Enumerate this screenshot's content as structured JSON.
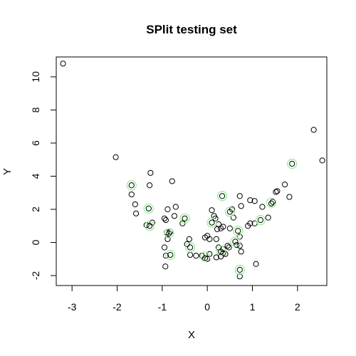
{
  "chart_data": {
    "type": "scatter",
    "title": "SPlit testing set",
    "xlabel": "X",
    "ylabel": "Y",
    "xlim": [
      -3.35,
      2.65
    ],
    "ylim": [
      -2.6,
      11.2
    ],
    "xticks": [
      -3,
      -2,
      -1,
      0,
      1,
      2
    ],
    "yticks": [
      -2,
      0,
      2,
      4,
      6,
      8,
      10
    ],
    "grid": false,
    "highlight_color": "#90ee90",
    "series": [
      {
        "role": "all",
        "points": [
          {
            "x": -3.2,
            "y": 10.8
          },
          {
            "x": -2.03,
            "y": 5.15
          },
          {
            "x": 2.36,
            "y": 6.8
          },
          {
            "x": 2.55,
            "y": 4.95
          },
          {
            "x": 1.88,
            "y": 4.75
          },
          {
            "x": -1.68,
            "y": 3.45
          },
          {
            "x": -1.68,
            "y": 2.9
          },
          {
            "x": -1.6,
            "y": 2.3
          },
          {
            "x": -1.58,
            "y": 1.75
          },
          {
            "x": -1.3,
            "y": 2.05
          },
          {
            "x": -1.26,
            "y": 4.2
          },
          {
            "x": -1.28,
            "y": 3.45
          },
          {
            "x": -1.35,
            "y": 1.05
          },
          {
            "x": -1.28,
            "y": 1.0
          },
          {
            "x": -1.22,
            "y": 1.2
          },
          {
            "x": -0.92,
            "y": 1.35
          },
          {
            "x": -0.78,
            "y": 3.7
          },
          {
            "x": -0.7,
            "y": 2.15
          },
          {
            "x": -0.73,
            "y": 1.6
          },
          {
            "x": -0.95,
            "y": 1.45
          },
          {
            "x": -0.9,
            "y": 0.6
          },
          {
            "x": -0.82,
            "y": 0.65
          },
          {
            "x": -0.85,
            "y": 0.55
          },
          {
            "x": -0.88,
            "y": 0.2
          },
          {
            "x": -0.95,
            "y": -0.3
          },
          {
            "x": -0.92,
            "y": -0.8
          },
          {
            "x": -0.82,
            "y": -0.75
          },
          {
            "x": -0.93,
            "y": -1.45
          },
          {
            "x": -0.88,
            "y": 2.0
          },
          {
            "x": -0.5,
            "y": 1.45
          },
          {
            "x": -0.55,
            "y": 1.15
          },
          {
            "x": -0.45,
            "y": -0.1
          },
          {
            "x": -0.38,
            "y": -0.3
          },
          {
            "x": -0.4,
            "y": 0.2
          },
          {
            "x": -0.38,
            "y": -0.75
          },
          {
            "x": -0.25,
            "y": -0.8
          },
          {
            "x": -0.12,
            "y": -0.8
          },
          {
            "x": -0.05,
            "y": -0.95
          },
          {
            "x": 0.0,
            "y": -1.0
          },
          {
            "x": 0.05,
            "y": -0.7
          },
          {
            "x": -0.05,
            "y": 0.3
          },
          {
            "x": 0.0,
            "y": 0.4
          },
          {
            "x": 0.05,
            "y": 0.2
          },
          {
            "x": 0.1,
            "y": 1.2
          },
          {
            "x": 0.1,
            "y": 1.95
          },
          {
            "x": 0.15,
            "y": 1.6
          },
          {
            "x": 0.18,
            "y": 1.45
          },
          {
            "x": 0.22,
            "y": 0.8
          },
          {
            "x": 0.25,
            "y": 1.1
          },
          {
            "x": 0.3,
            "y": 0.85
          },
          {
            "x": 0.35,
            "y": 0.95
          },
          {
            "x": 0.2,
            "y": 0.2
          },
          {
            "x": 0.25,
            "y": -0.3
          },
          {
            "x": 0.3,
            "y": -0.55
          },
          {
            "x": 0.35,
            "y": -0.4
          },
          {
            "x": 0.4,
            "y": -0.7
          },
          {
            "x": 0.45,
            "y": -0.2
          },
          {
            "x": 0.48,
            "y": -0.3
          },
          {
            "x": 0.2,
            "y": -0.9
          },
          {
            "x": 0.3,
            "y": -0.85
          },
          {
            "x": 0.35,
            "y": -0.65
          },
          {
            "x": 0.33,
            "y": 2.8
          },
          {
            "x": 0.5,
            "y": 1.85
          },
          {
            "x": 0.5,
            "y": 0.85
          },
          {
            "x": 0.55,
            "y": 2.0
          },
          {
            "x": 0.58,
            "y": 1.5
          },
          {
            "x": 0.62,
            "y": 0.05
          },
          {
            "x": 0.65,
            "y": -0.15
          },
          {
            "x": 0.68,
            "y": 0.7
          },
          {
            "x": 0.72,
            "y": 0.35
          },
          {
            "x": 0.72,
            "y": -0.2
          },
          {
            "x": 0.75,
            "y": -0.55
          },
          {
            "x": 0.72,
            "y": -1.65
          },
          {
            "x": 0.72,
            "y": -2.05
          },
          {
            "x": 0.72,
            "y": 2.8
          },
          {
            "x": 0.75,
            "y": 2.2
          },
          {
            "x": 0.9,
            "y": 1.0
          },
          {
            "x": 0.95,
            "y": 1.15
          },
          {
            "x": 0.95,
            "y": 2.55
          },
          {
            "x": 1.05,
            "y": 2.5
          },
          {
            "x": 1.05,
            "y": 1.15
          },
          {
            "x": 1.08,
            "y": -1.3
          },
          {
            "x": 1.18,
            "y": 1.35
          },
          {
            "x": 1.22,
            "y": 2.15
          },
          {
            "x": 1.35,
            "y": 1.5
          },
          {
            "x": 1.42,
            "y": 2.35
          },
          {
            "x": 1.45,
            "y": 2.45
          },
          {
            "x": 1.52,
            "y": 3.05
          },
          {
            "x": 1.55,
            "y": 3.1
          },
          {
            "x": 1.72,
            "y": 3.5
          },
          {
            "x": 1.82,
            "y": 2.75
          }
        ]
      },
      {
        "role": "highlighted",
        "points": [
          {
            "x": -1.68,
            "y": 3.45
          },
          {
            "x": -1.3,
            "y": 2.05
          },
          {
            "x": -1.28,
            "y": 1.0
          },
          {
            "x": -0.85,
            "y": 0.55
          },
          {
            "x": -0.82,
            "y": -0.75
          },
          {
            "x": -0.5,
            "y": 1.45
          },
          {
            "x": -0.38,
            "y": -0.3
          },
          {
            "x": -0.05,
            "y": -0.85
          },
          {
            "x": 0.1,
            "y": 1.2
          },
          {
            "x": 0.33,
            "y": 2.8
          },
          {
            "x": 0.3,
            "y": -0.5
          },
          {
            "x": 0.5,
            "y": 1.85
          },
          {
            "x": 0.62,
            "y": 0.05
          },
          {
            "x": 0.68,
            "y": 0.7
          },
          {
            "x": 0.72,
            "y": -1.65
          },
          {
            "x": 1.18,
            "y": 1.35
          },
          {
            "x": 1.42,
            "y": 2.4
          },
          {
            "x": 1.88,
            "y": 4.75
          }
        ]
      }
    ]
  }
}
